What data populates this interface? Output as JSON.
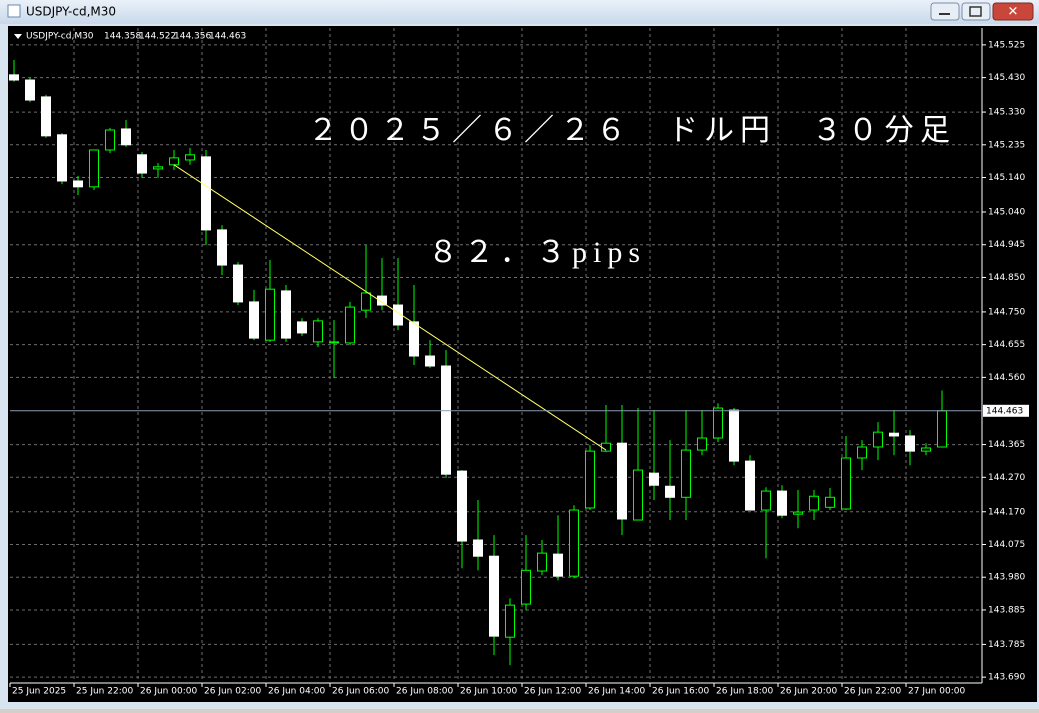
{
  "window_title": "USDJPY-cd,M30",
  "chart_data": {
    "type": "candlestick",
    "title": "USDJPY-cd,M30",
    "header_ohlc": [
      144.358,
      144.522,
      144.356,
      144.463
    ],
    "annotations": [
      "２０２５／６／２６　ドル円　３０分足",
      "８２．３pips"
    ],
    "categories": [
      "25 Jun 2025",
      null,
      null,
      null,
      "25 Jun 22:00",
      null,
      null,
      null,
      "26 Jun 00:00",
      null,
      null,
      null,
      "26 Jun 02:00",
      null,
      null,
      null,
      "26 Jun 04:00",
      null,
      null,
      null,
      "26 Jun 06:00",
      null,
      null,
      null,
      "26 Jun 08:00",
      null,
      null,
      null,
      "26 Jun 10:00",
      null,
      null,
      null,
      "26 Jun 12:00",
      null,
      null,
      null,
      "26 Jun 14:00",
      null,
      null,
      null,
      "26 Jun 16:00",
      null,
      null,
      null,
      "26 Jun 18:00",
      null,
      null,
      null,
      "26 Jun 20:00",
      null,
      null,
      null,
      "26 Jun 22:00",
      null,
      null,
      null,
      "27 Jun 00:00",
      null,
      null
    ],
    "open": [
      145.438,
      145.423,
      145.374,
      145.264,
      145.13,
      145.113,
      145.22,
      145.281,
      145.206,
      145.165,
      145.177,
      145.191,
      145.2,
      144.988,
      144.886,
      144.779,
      144.668,
      144.811,
      144.721,
      144.663,
      144.66,
      144.66,
      144.755,
      144.796,
      144.77,
      144.721,
      144.622,
      144.593,
      144.288,
      144.088,
      144.041,
      143.806,
      143.902,
      143.998,
      144.047,
      143.983,
      144.181,
      144.346,
      144.369,
      144.146,
      144.282,
      144.244,
      144.212,
      144.349,
      144.384,
      144.465,
      144.317,
      144.175,
      144.23,
      144.163,
      144.175,
      144.183,
      144.178,
      144.326,
      144.358,
      144.398,
      144.39,
      144.346,
      144.358
    ],
    "high": [
      145.481,
      145.429,
      145.38,
      145.269,
      145.145,
      145.22,
      145.284,
      145.307,
      145.214,
      145.182,
      145.22,
      145.226,
      145.22,
      145.002,
      144.895,
      144.814,
      144.901,
      144.828,
      144.732,
      144.732,
      144.726,
      144.779,
      144.944,
      144.906,
      144.906,
      144.828,
      144.668,
      144.639,
      144.291,
      144.204,
      144.102,
      143.919,
      144.102,
      144.088,
      144.16,
      144.189,
      144.363,
      144.48,
      144.48,
      144.471,
      144.465,
      144.378,
      144.465,
      144.465,
      144.485,
      144.471,
      144.334,
      144.241,
      144.247,
      144.233,
      144.233,
      144.239,
      144.39,
      144.378,
      144.43,
      144.465,
      144.407,
      144.369,
      144.522
    ],
    "low": [
      145.418,
      145.359,
      145.255,
      145.121,
      145.089,
      145.104,
      145.211,
      145.229,
      145.139,
      145.139,
      145.162,
      145.177,
      144.944,
      144.857,
      144.77,
      144.668,
      144.663,
      144.663,
      144.68,
      144.648,
      144.558,
      144.654,
      144.732,
      144.755,
      144.697,
      144.596,
      144.587,
      144.268,
      144.006,
      144.0,
      143.754,
      143.725,
      143.884,
      143.986,
      143.971,
      143.977,
      144.175,
      144.343,
      144.102,
      144.146,
      144.204,
      144.146,
      144.146,
      144.334,
      144.372,
      144.305,
      144.175,
      144.035,
      144.151,
      144.122,
      144.146,
      144.175,
      144.175,
      144.291,
      144.32,
      144.334,
      144.305,
      144.334,
      144.356
    ],
    "close": [
      145.423,
      145.365,
      145.261,
      145.13,
      145.113,
      145.22,
      145.278,
      145.235,
      145.153,
      145.171,
      145.197,
      145.206,
      144.988,
      144.886,
      144.779,
      144.674,
      144.816,
      144.674,
      144.689,
      144.724,
      144.663,
      144.764,
      144.805,
      144.77,
      144.712,
      144.622,
      144.593,
      144.279,
      144.085,
      144.041,
      143.809,
      143.899,
      144.0,
      144.05,
      143.983,
      144.175,
      144.346,
      144.369,
      144.149,
      144.291,
      144.247,
      144.212,
      144.349,
      144.384,
      144.471,
      144.317,
      144.175,
      144.23,
      144.16,
      144.169,
      144.215,
      144.212,
      144.326,
      144.358,
      144.401,
      144.39,
      144.346,
      144.355,
      144.463
    ],
    "current_price": 144.463,
    "trendline": {
      "x": [
        10,
        37
      ],
      "values": [
        145.177,
        144.349
      ],
      "color": "#ffff66"
    },
    "ylim": [
      143.673,
      145.574
    ],
    "yticks": [
      145.525,
      {
        "value": 145.43,
        "label": "145.430"
      },
      {
        "value": 145.33,
        "label": "145.330"
      },
      145.235,
      {
        "value": 145.14,
        "label": "145.140"
      },
      {
        "value": 145.04,
        "label": "145.040"
      },
      144.945,
      {
        "value": 144.85,
        "label": "144.850"
      },
      {
        "value": 144.75,
        "label": "144.750"
      },
      144.655,
      {
        "value": 144.56,
        "label": "144.560"
      },
      144.365,
      {
        "value": 144.27,
        "label": "144.270"
      },
      {
        "value": 144.17,
        "label": "144.170"
      },
      144.075,
      {
        "value": 143.98,
        "label": "143.980"
      },
      143.885,
      143.785,
      {
        "value": 143.69,
        "label": "143.690"
      }
    ],
    "grid": true,
    "up_fill": "#000000",
    "down_fill": "#ffffff",
    "wick_color": "#00ff00"
  }
}
